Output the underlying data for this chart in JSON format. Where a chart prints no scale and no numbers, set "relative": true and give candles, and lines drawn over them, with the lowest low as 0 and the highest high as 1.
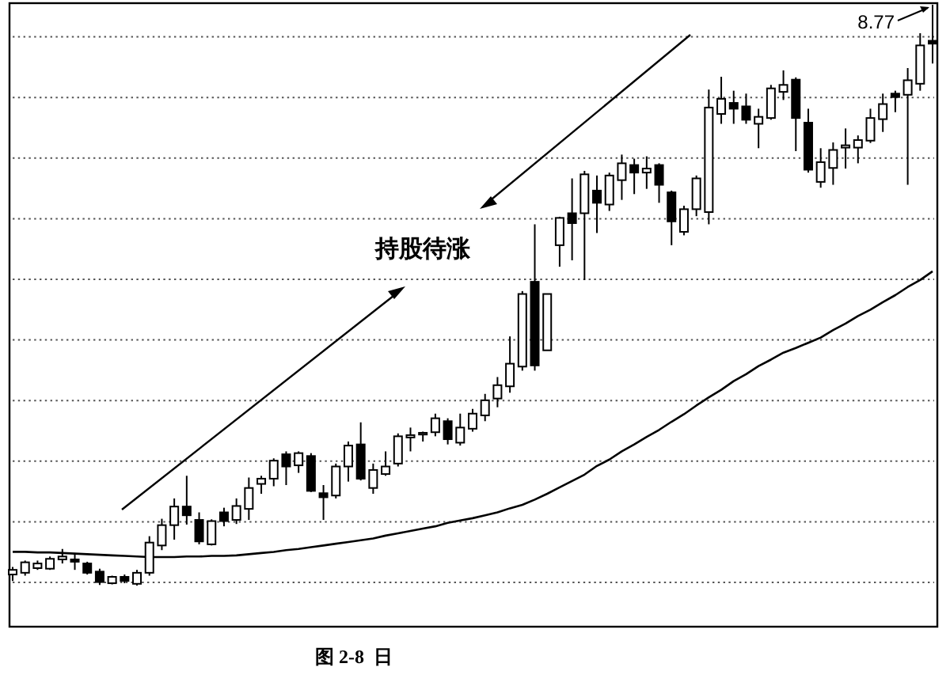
{
  "chart_data": {
    "type": "candlestick",
    "relative": true,
    "grid": "y",
    "categories": [
      null,
      null,
      null,
      null,
      null,
      null,
      null,
      null,
      null,
      null,
      null,
      null,
      null,
      null,
      null,
      null,
      null,
      null,
      null,
      null,
      null,
      null,
      null,
      null,
      null,
      null,
      null,
      null,
      null,
      null,
      null,
      null,
      null,
      null,
      null,
      null,
      null,
      null,
      null,
      null,
      null,
      null,
      null,
      null,
      null,
      null,
      null,
      null,
      null,
      null,
      null,
      null,
      null,
      null,
      null,
      null,
      null,
      null,
      null,
      null,
      null,
      null,
      null,
      null,
      null,
      null,
      null,
      null,
      null,
      null,
      null,
      null,
      null,
      null,
      null
    ],
    "ohlc": [
      [
        0.019,
        0.032,
        0.008,
        0.027
      ],
      [
        0.022,
        0.043,
        0.017,
        0.04
      ],
      [
        0.03,
        0.043,
        0.027,
        0.038
      ],
      [
        0.029,
        0.05,
        0.027,
        0.046
      ],
      [
        0.045,
        0.063,
        0.038,
        0.05
      ],
      [
        0.045,
        0.056,
        0.027,
        0.041
      ],
      [
        0.038,
        0.041,
        0.019,
        0.022
      ],
      [
        0.024,
        0.029,
        0.001,
        0.006
      ],
      [
        0.004,
        0.017,
        0.002,
        0.015
      ],
      [
        0.015,
        0.019,
        0.004,
        0.008
      ],
      [
        0.003,
        0.027,
        0,
        0.022
      ],
      [
        0.022,
        0.085,
        0.017,
        0.074
      ],
      [
        0.069,
        0.115,
        0.061,
        0.104
      ],
      [
        0.104,
        0.15,
        0.079,
        0.136
      ],
      [
        0.136,
        0.189,
        0.105,
        0.121
      ],
      [
        0.113,
        0.126,
        0.071,
        0.076
      ],
      [
        0.071,
        0.114,
        0.069,
        0.111
      ],
      [
        0.126,
        0.134,
        0.102,
        0.111
      ],
      [
        0.113,
        0.15,
        0.106,
        0.137
      ],
      [
        0.132,
        0.186,
        0.113,
        0.168
      ],
      [
        0.175,
        0.189,
        0.158,
        0.184
      ],
      [
        0.184,
        0.219,
        0.171,
        0.215
      ],
      [
        0.226,
        0.231,
        0.173,
        0.205
      ],
      [
        0.207,
        0.231,
        0.194,
        0.228
      ],
      [
        0.223,
        0.228,
        0.161,
        0.163
      ],
      [
        0.159,
        0.173,
        0.113,
        0.152
      ],
      [
        0.155,
        0.21,
        0.15,
        0.205
      ],
      [
        0.205,
        0.248,
        0.179,
        0.241
      ],
      [
        0.243,
        0.281,
        0.181,
        0.184
      ],
      [
        0.168,
        0.21,
        0.158,
        0.199
      ],
      [
        0.192,
        0.231,
        0.189,
        0.205
      ],
      [
        0.21,
        0.262,
        0.205,
        0.257
      ],
      [
        0.255,
        0.272,
        0.231,
        0.259
      ],
      [
        0.26,
        0.265,
        0.248,
        0.263
      ],
      [
        0.264,
        0.296,
        0.257,
        0.288
      ],
      [
        0.283,
        0.288,
        0.243,
        0.252
      ],
      [
        0.246,
        0.296,
        0.241,
        0.272
      ],
      [
        0.27,
        0.304,
        0.265,
        0.296
      ],
      [
        0.293,
        0.33,
        0.283,
        0.319
      ],
      [
        0.322,
        0.359,
        0.307,
        0.345
      ],
      [
        0.343,
        0.429,
        0.332,
        0.382
      ],
      [
        0.377,
        0.507,
        0.37,
        0.502
      ],
      [
        0.523,
        0.622,
        0.37,
        0.379
      ],
      [
        0.405,
        0.502,
        0.405,
        0.502
      ],
      [
        0.586,
        0.635,
        0.549,
        0.633
      ],
      [
        0.641,
        0.701,
        0.56,
        0.624
      ],
      [
        0.641,
        0.714,
        0.526,
        0.708
      ],
      [
        0.68,
        0.706,
        0.607,
        0.659
      ],
      [
        0.656,
        0.711,
        0.645,
        0.706
      ],
      [
        0.698,
        0.742,
        0.664,
        0.727
      ],
      [
        0.724,
        0.735,
        0.674,
        0.711
      ],
      [
        0.711,
        0.739,
        0.683,
        0.718
      ],
      [
        0.724,
        0.727,
        0.659,
        0.69
      ],
      [
        0.677,
        0.68,
        0.586,
        0.627
      ],
      [
        0.609,
        0.654,
        0.603,
        0.648
      ],
      [
        0.648,
        0.706,
        0.636,
        0.701
      ],
      [
        0.643,
        0.854,
        0.622,
        0.823
      ],
      [
        0.812,
        0.876,
        0.795,
        0.838
      ],
      [
        0.831,
        0.852,
        0.795,
        0.821
      ],
      [
        0.825,
        0.847,
        0.795,
        0.802
      ],
      [
        0.795,
        0.821,
        0.753,
        0.807
      ],
      [
        0.805,
        0.862,
        0.802,
        0.856
      ],
      [
        0.85,
        0.887,
        0.836,
        0.862
      ],
      [
        0.871,
        0.875,
        0.748,
        0.805
      ],
      [
        0.797,
        0.821,
        0.711,
        0.716
      ],
      [
        0.695,
        0.753,
        0.685,
        0.729
      ],
      [
        0.719,
        0.763,
        0.69,
        0.75
      ],
      [
        0.754,
        0.787,
        0.718,
        0.758
      ],
      [
        0.754,
        0.775,
        0.727,
        0.767
      ],
      [
        0.766,
        0.821,
        0.762,
        0.805
      ],
      [
        0.803,
        0.847,
        0.781,
        0.829
      ],
      [
        0.847,
        0.852,
        0.815,
        0.841
      ],
      [
        0.845,
        0.891,
        0.69,
        0.87
      ],
      [
        0.864,
        0.951,
        0.852,
        0.93
      ],
      [
        0.938,
        1.0,
        0.899,
        0.933
      ]
    ],
    "series": [
      {
        "type": "line",
        "color": "#000000",
        "values": [
          0.058,
          0.058,
          0.057,
          0.057,
          0.056,
          0.055,
          0.054,
          0.053,
          0.052,
          0.051,
          0.05,
          0.049,
          0.049,
          0.049,
          0.05,
          0.05,
          0.051,
          0.051,
          0.052,
          0.054,
          0.056,
          0.058,
          0.061,
          0.063,
          0.066,
          0.069,
          0.072,
          0.075,
          0.078,
          0.081,
          0.086,
          0.09,
          0.094,
          0.098,
          0.102,
          0.108,
          0.112,
          0.116,
          0.121,
          0.126,
          0.133,
          0.139,
          0.148,
          0.158,
          0.169,
          0.18,
          0.191,
          0.206,
          0.217,
          0.231,
          0.243,
          0.256,
          0.268,
          0.282,
          0.295,
          0.31,
          0.324,
          0.337,
          0.352,
          0.364,
          0.378,
          0.389,
          0.401,
          0.409,
          0.418,
          0.427,
          0.44,
          0.451,
          0.464,
          0.475,
          0.488,
          0.5,
          0.514,
          0.526,
          0.541
        ]
      }
    ],
    "annotations": [
      "持股待涨",
      "8.77",
      "图 2-8  日"
    ]
  }
}
